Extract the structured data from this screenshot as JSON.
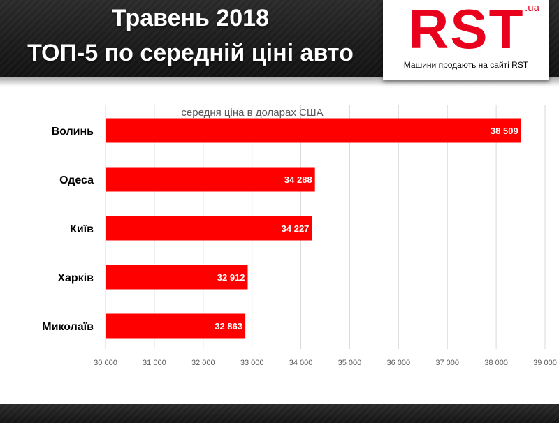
{
  "header": {
    "title_line1": "Травень 2018",
    "title_line2": "ТОП-5 по середній ціні авто"
  },
  "logo": {
    "text": "RST",
    "suffix": ".ua",
    "tagline": "Машини продають на сайті RST",
    "color": "#e8001c"
  },
  "chart_data": {
    "type": "bar",
    "orientation": "horizontal",
    "subtitle": "середня ціна в доларах США",
    "categories": [
      "Волинь",
      "Одеса",
      "Київ",
      "Харків",
      "Миколаїв"
    ],
    "values": [
      38509,
      34288,
      34227,
      32912,
      32863
    ],
    "value_labels": [
      "38 509",
      "34 288",
      "34 227",
      "32 912",
      "32 863"
    ],
    "xlim": [
      30000,
      39000
    ],
    "xticks": [
      30000,
      31000,
      32000,
      33000,
      34000,
      35000,
      36000,
      37000,
      38000,
      39000
    ],
    "xtick_labels": [
      "30 000",
      "31 000",
      "32 000",
      "33 000",
      "34 000",
      "35 000",
      "36 000",
      "37 000",
      "38 000",
      "39 000"
    ],
    "bar_color": "#ff0000",
    "grid": true,
    "xlabel": "",
    "ylabel": ""
  }
}
